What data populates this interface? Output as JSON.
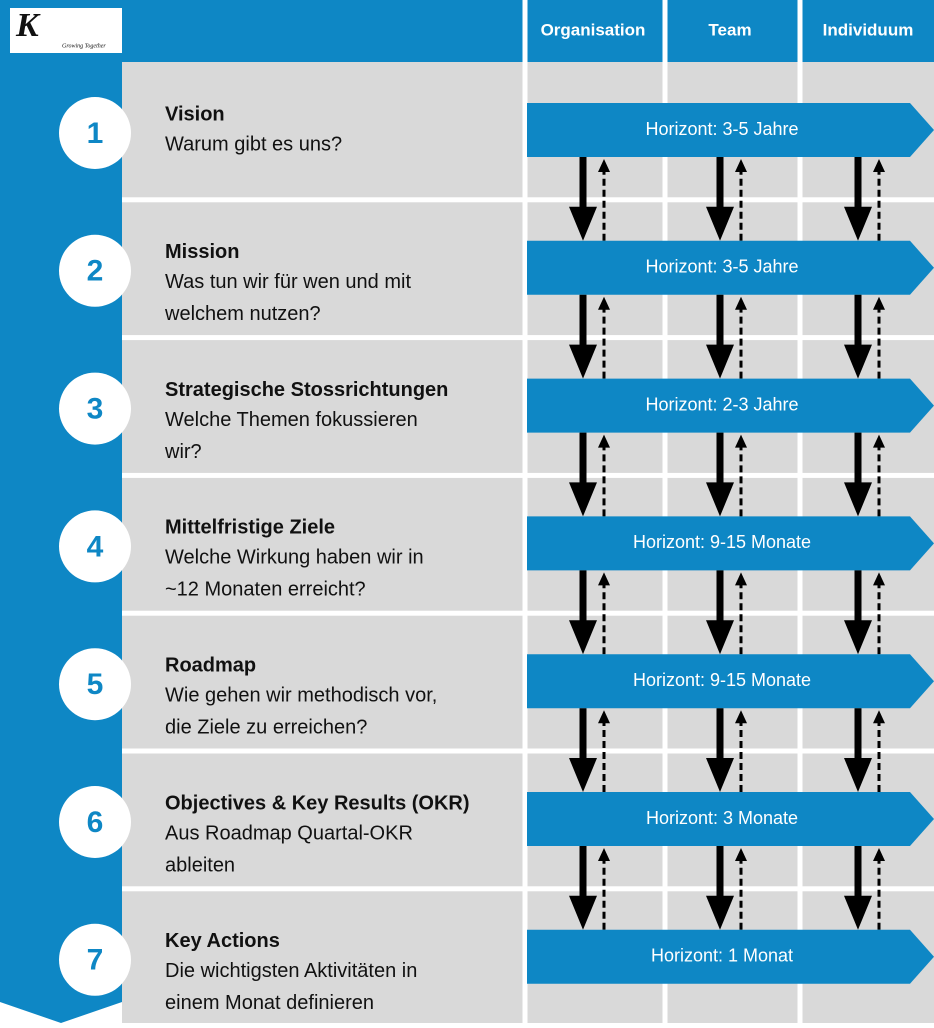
{
  "logo": {
    "letter": "K",
    "tagline": "Growing Together"
  },
  "columns": [
    "Organisation",
    "Team",
    "Individuum"
  ],
  "rows": [
    {
      "number": 1,
      "title": "Vision",
      "lines": [
        "Warum gibt es uns?"
      ],
      "horizon": "Horizont: 3-5 Jahre"
    },
    {
      "number": 2,
      "title": "Mission",
      "lines": [
        "Was tun wir für wen und mit",
        "welchem nutzen?"
      ],
      "horizon": "Horizont: 3-5 Jahre"
    },
    {
      "number": 3,
      "title": "Strategische Stossrichtungen",
      "lines": [
        "Welche Themen fokussieren",
        "wir?"
      ],
      "horizon": "Horizont: 2-3 Jahre"
    },
    {
      "number": 4,
      "title": "Mittelfristige Ziele",
      "lines": [
        "Welche Wirkung haben wir in",
        "~12 Monaten erreicht?"
      ],
      "horizon": "Horizont: 9-15 Monate"
    },
    {
      "number": 5,
      "title": "Roadmap",
      "lines": [
        "Wie gehen wir methodisch vor,",
        "die Ziele zu erreichen?"
      ],
      "horizon": "Horizont: 9-15 Monate"
    },
    {
      "number": 6,
      "title": "Objectives & Key Results (OKR)",
      "lines": [
        "Aus Roadmap Quartal-OKR",
        "ableiten"
      ],
      "horizon": "Horizont: 3 Monate"
    },
    {
      "number": 7,
      "title": "Key Actions",
      "lines": [
        "Die wichtigsten Aktivitäten in",
        "einem Monat definieren"
      ],
      "horizon": "Horizont: 1 Monat"
    }
  ]
}
